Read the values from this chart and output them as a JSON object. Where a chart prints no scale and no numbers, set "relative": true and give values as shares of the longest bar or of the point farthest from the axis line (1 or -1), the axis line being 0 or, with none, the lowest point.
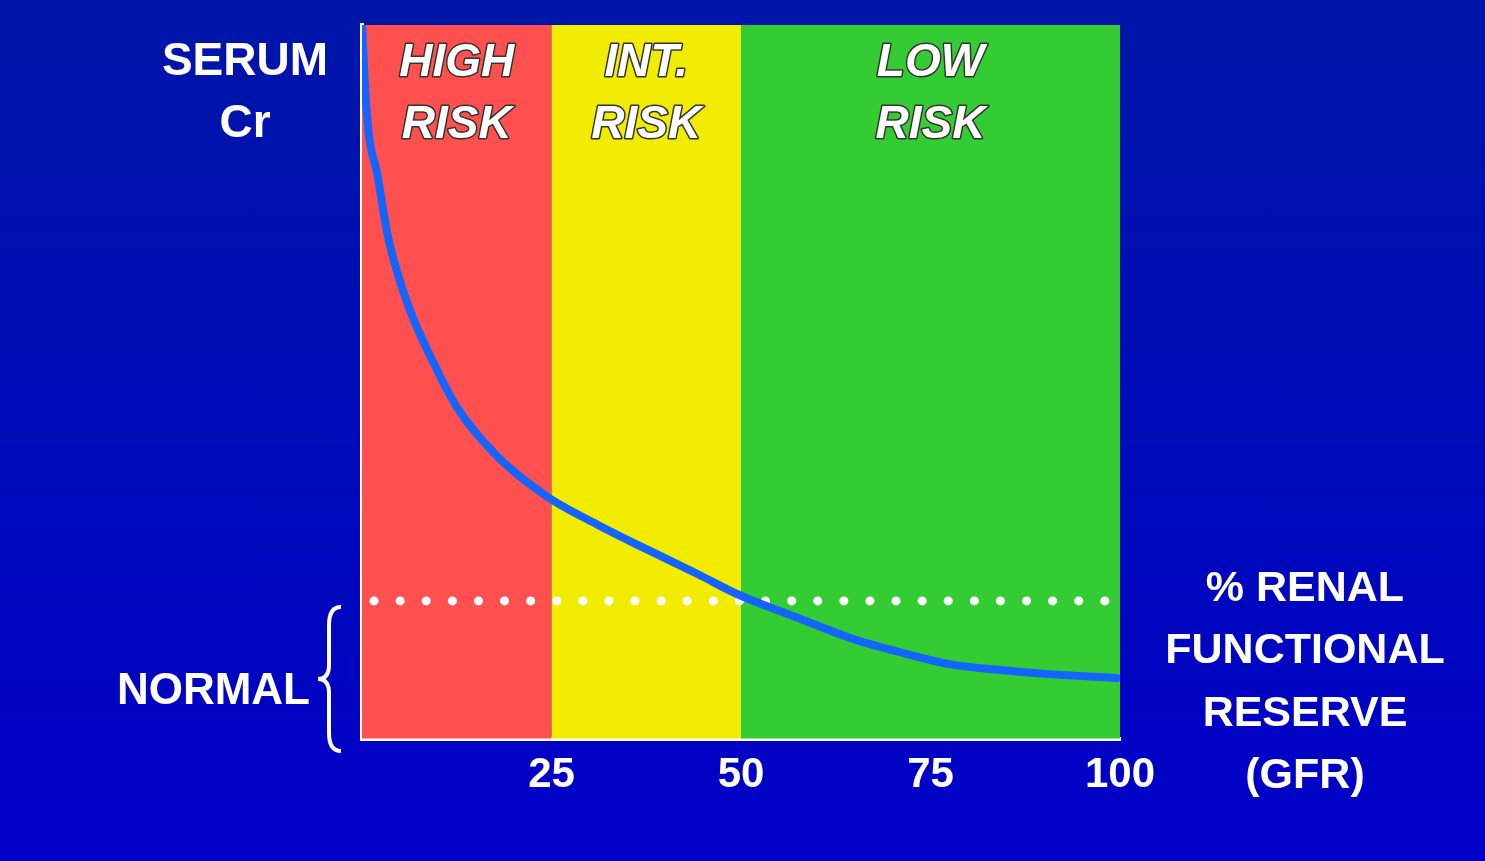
{
  "chart_data": {
    "type": "line",
    "relative": true,
    "ylabel": "SERUM Cr",
    "xlabel": "% RENAL FUNCTIONAL RESERVE (GFR)",
    "xlim": [
      0,
      100
    ],
    "xticks": [
      25,
      50,
      75,
      100
    ],
    "grid": false,
    "legend": false,
    "marker": "none",
    "line_style": "solid",
    "series": [
      {
        "color": "#1464ff",
        "x": [
          0,
          0.4,
          0.9,
          2.0,
          3.3,
          4.6,
          6.6,
          8.6,
          12.6,
          17.9,
          24.3,
          31.2,
          37.8,
          44.4,
          49.4,
          57.8,
          64.4,
          71,
          77.7,
          84.3,
          91,
          99.6
        ],
        "values": [
          1.0,
          0.915,
          0.847,
          0.792,
          0.71,
          0.655,
          0.593,
          0.545,
          0.463,
          0.395,
          0.34,
          0.299,
          0.264,
          0.23,
          0.203,
          0.168,
          0.141,
          0.121,
          0.104,
          0.096,
          0.09,
          0.085
        ]
      }
    ],
    "bands": [
      {
        "axis": "x",
        "from": 0,
        "to": 25,
        "label": "HIGH RISK",
        "color": "#ff5050"
      },
      {
        "axis": "x",
        "from": 25,
        "to": 50,
        "label": "INT. RISK",
        "color": "#f2ec00"
      },
      {
        "axis": "x",
        "from": 50,
        "to": 100,
        "label": "LOW RISK",
        "color": "#33cc33"
      }
    ],
    "ref_lines": [
      {
        "axis": "y",
        "value": 0.193,
        "label": "NORMAL",
        "color": "#ffffff",
        "line_style": "dotted"
      }
    ]
  }
}
